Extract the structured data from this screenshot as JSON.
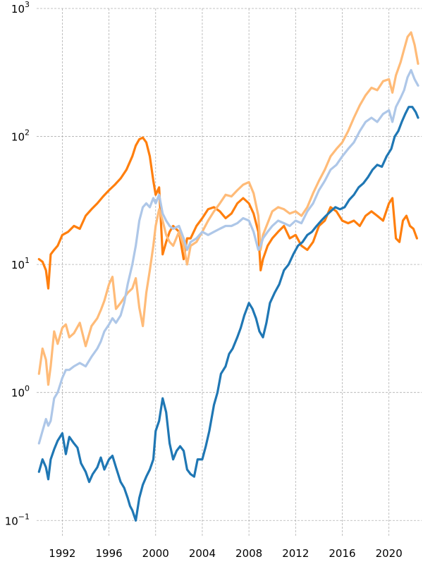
{
  "chart_data": {
    "type": "line",
    "title": "",
    "xlabel": "",
    "ylabel": "",
    "y_scale": "log",
    "grid": true,
    "legend": "none",
    "xlim": [
      1989.8,
      2022.8
    ],
    "ylim": [
      0.074,
      1000
    ],
    "x_ticks": [
      1992,
      1996,
      2000,
      2004,
      2008,
      2012,
      2016,
      2020
    ],
    "x_tick_labels": [
      "1992",
      "1996",
      "2000",
      "2004",
      "2008",
      "2012",
      "2016",
      "2020"
    ],
    "y_ticks": [
      {
        "value": 1000,
        "base": "10",
        "exp": "3"
      },
      {
        "value": 100,
        "base": "10",
        "exp": "2"
      },
      {
        "value": 10,
        "base": "10",
        "exp": "1"
      },
      {
        "value": 1,
        "base": "10",
        "exp": "0"
      },
      {
        "value": 0.1,
        "base": "10",
        "exp": "−1"
      }
    ],
    "series": [
      {
        "color": "#ff7f0e",
        "x": [
          1990.0,
          1990.3,
          1990.6,
          1990.8,
          1991.0,
          1991.3,
          1991.6,
          1992.0,
          1992.5,
          1993.0,
          1993.5,
          1994.0,
          1994.5,
          1995.0,
          1995.5,
          1996.0,
          1996.5,
          1997.0,
          1997.5,
          1998.0,
          1998.3,
          1998.6,
          1998.9,
          1999.2,
          1999.5,
          1999.8,
          2000.0,
          2000.3,
          2000.6,
          2000.9,
          2001.2,
          2001.5,
          2002.0,
          2002.4,
          2002.7,
          2003.0,
          2003.5,
          2004.0,
          2004.5,
          2005.0,
          2005.5,
          2006.0,
          2006.5,
          2007.0,
          2007.5,
          2008.0,
          2008.4,
          2008.8,
          2009.0,
          2009.2,
          2009.6,
          2010.0,
          2010.5,
          2011.0,
          2011.5,
          2012.0,
          2012.5,
          2013.0,
          2013.5,
          2014.0,
          2014.5,
          2015.0,
          2015.5,
          2016.0,
          2016.5,
          2017.0,
          2017.5,
          2018.0,
          2018.5,
          2019.0,
          2019.5,
          2020.0,
          2020.3,
          2020.6,
          2020.9,
          2021.2,
          2021.5,
          2021.8,
          2022.1,
          2022.4
        ],
        "y": [
          11,
          10.5,
          9,
          6.5,
          12,
          13,
          14,
          17,
          18,
          20,
          19,
          24,
          27,
          30,
          34,
          38,
          42,
          47,
          55,
          70,
          85,
          95,
          98,
          90,
          70,
          45,
          35,
          40,
          12,
          15,
          18,
          20,
          18,
          11,
          16,
          16,
          20,
          23,
          27,
          28,
          26,
          23,
          25,
          30,
          33,
          30,
          25,
          18,
          9,
          11,
          14,
          16,
          18,
          20,
          16,
          17,
          14,
          13,
          15,
          20,
          22,
          28,
          26,
          22,
          21,
          22,
          20,
          24,
          26,
          24,
          22,
          30,
          33,
          16,
          15,
          22,
          24,
          20,
          19,
          16
        ]
      },
      {
        "color": "#ffbb78",
        "x": [
          1990.0,
          1990.3,
          1990.6,
          1990.8,
          1991.0,
          1991.3,
          1991.6,
          1992.0,
          1992.3,
          1992.6,
          1993.0,
          1993.5,
          1994.0,
          1994.5,
          1995.0,
          1995.3,
          1995.6,
          1996.0,
          1996.3,
          1996.6,
          1997.0,
          1997.3,
          1997.6,
          1998.0,
          1998.3,
          1998.6,
          1998.9,
          1999.2,
          1999.5,
          1999.8,
          2000.0,
          2000.3,
          2000.6,
          2000.9,
          2001.2,
          2001.5,
          2002.0,
          2002.4,
          2002.7,
          2003.0,
          2003.5,
          2004.0,
          2004.5,
          2005.0,
          2005.5,
          2006.0,
          2006.5,
          2007.0,
          2007.5,
          2008.0,
          2008.4,
          2008.8,
          2009.0,
          2009.2,
          2009.6,
          2010.0,
          2010.5,
          2011.0,
          2011.5,
          2012.0,
          2012.5,
          2013.0,
          2013.5,
          2014.0,
          2014.5,
          2015.0,
          2015.5,
          2016.0,
          2016.5,
          2017.0,
          2017.5,
          2018.0,
          2018.5,
          2019.0,
          2019.5,
          2020.0,
          2020.3,
          2020.6,
          2021.0,
          2021.3,
          2021.6,
          2021.9,
          2022.2,
          2022.5
        ],
        "y": [
          1.4,
          2.2,
          1.8,
          1.15,
          1.6,
          3.0,
          2.4,
          3.2,
          3.4,
          2.7,
          2.9,
          3.5,
          2.3,
          3.3,
          3.8,
          4.4,
          5.2,
          7.0,
          8.0,
          4.5,
          5.0,
          5.5,
          6.0,
          6.5,
          7.8,
          4.6,
          3.3,
          6.0,
          9.0,
          14.0,
          20.0,
          27.0,
          22.0,
          17.0,
          15.0,
          14.0,
          18.0,
          14.0,
          10.0,
          14.0,
          15.0,
          18.0,
          22.0,
          26.0,
          30.0,
          35.0,
          34.0,
          38.0,
          42.0,
          44.0,
          36.0,
          24.0,
          13.0,
          17.0,
          21.0,
          26.0,
          28.0,
          27.0,
          25.0,
          26.0,
          24.0,
          28.0,
          36.0,
          45.0,
          55.0,
          70.0,
          80.0,
          90.0,
          110.0,
          140.0,
          175.0,
          210.0,
          240.0,
          230.0,
          270.0,
          280.0,
          220.0,
          300.0,
          380.0,
          480.0,
          600.0,
          650.0,
          520.0,
          370.0
        ]
      },
      {
        "color": "#aec7e8",
        "x": [
          1990.0,
          1990.3,
          1990.6,
          1990.8,
          1991.0,
          1991.3,
          1991.6,
          1992.0,
          1992.3,
          1992.6,
          1993.0,
          1993.5,
          1994.0,
          1994.5,
          1995.0,
          1995.3,
          1995.6,
          1996.0,
          1996.3,
          1996.6,
          1997.0,
          1997.3,
          1997.6,
          1998.0,
          1998.3,
          1998.6,
          1998.9,
          1999.2,
          1999.5,
          1999.8,
          2000.0,
          2000.3,
          2000.6,
          2000.9,
          2001.2,
          2001.5,
          2002.0,
          2002.4,
          2002.7,
          2003.0,
          2003.5,
          2004.0,
          2004.5,
          2005.0,
          2005.5,
          2006.0,
          2006.5,
          2007.0,
          2007.5,
          2008.0,
          2008.4,
          2008.8,
          2009.0,
          2009.2,
          2009.6,
          2010.0,
          2010.5,
          2011.0,
          2011.5,
          2012.0,
          2012.5,
          2013.0,
          2013.5,
          2014.0,
          2014.5,
          2015.0,
          2015.5,
          2016.0,
          2016.5,
          2017.0,
          2017.5,
          2018.0,
          2018.5,
          2019.0,
          2019.5,
          2020.0,
          2020.3,
          2020.6,
          2021.0,
          2021.3,
          2021.6,
          2021.9,
          2022.2,
          2022.5
        ],
        "y": [
          0.4,
          0.5,
          0.62,
          0.55,
          0.6,
          0.9,
          1.0,
          1.3,
          1.5,
          1.5,
          1.6,
          1.7,
          1.6,
          1.9,
          2.2,
          2.5,
          3.0,
          3.4,
          3.8,
          3.5,
          4.0,
          5.0,
          7.0,
          10.0,
          14.0,
          22.0,
          28.0,
          30.0,
          28.0,
          33.0,
          30.0,
          35.0,
          25.0,
          22.0,
          20.0,
          19.0,
          20.0,
          16.0,
          13.0,
          15.0,
          16.0,
          18.0,
          17.0,
          18.0,
          19.0,
          20.0,
          20.0,
          21.0,
          23.0,
          22.0,
          18.0,
          13.0,
          14.0,
          16.0,
          18.0,
          20.0,
          22.0,
          21.0,
          20.0,
          22.0,
          21.0,
          26.0,
          30.0,
          38.0,
          45.0,
          55.0,
          60.0,
          70.0,
          80.0,
          90.0,
          110.0,
          130.0,
          140.0,
          130.0,
          150.0,
          160.0,
          130.0,
          170.0,
          200.0,
          230.0,
          290.0,
          330.0,
          280.0,
          250.0
        ]
      },
      {
        "color": "#1f77b4",
        "x": [
          1990.0,
          1990.3,
          1990.6,
          1990.8,
          1991.0,
          1991.3,
          1991.6,
          1992.0,
          1992.3,
          1992.6,
          1993.0,
          1993.3,
          1993.6,
          1994.0,
          1994.3,
          1994.6,
          1995.0,
          1995.3,
          1995.6,
          1996.0,
          1996.3,
          1996.6,
          1997.0,
          1997.3,
          1997.6,
          1997.8,
          1998.0,
          1998.3,
          1998.6,
          1998.9,
          1999.2,
          1999.5,
          1999.8,
          2000.0,
          2000.3,
          2000.6,
          2000.9,
          2001.2,
          2001.5,
          2001.8,
          2002.1,
          2002.4,
          2002.7,
          2003.0,
          2003.3,
          2003.6,
          2004.0,
          2004.3,
          2004.6,
          2005.0,
          2005.3,
          2005.6,
          2006.0,
          2006.3,
          2006.6,
          2007.0,
          2007.3,
          2007.6,
          2008.0,
          2008.3,
          2008.6,
          2008.9,
          2009.2,
          2009.5,
          2009.8,
          2010.2,
          2010.6,
          2011.0,
          2011.4,
          2011.8,
          2012.2,
          2012.6,
          2013.0,
          2013.4,
          2013.8,
          2014.2,
          2014.6,
          2015.0,
          2015.4,
          2015.8,
          2016.2,
          2016.6,
          2017.0,
          2017.4,
          2017.8,
          2018.2,
          2018.6,
          2019.0,
          2019.4,
          2019.8,
          2020.2,
          2020.5,
          2020.8,
          2021.1,
          2021.4,
          2021.7,
          2022.0,
          2022.3,
          2022.5
        ],
        "y": [
          0.24,
          0.3,
          0.26,
          0.21,
          0.3,
          0.36,
          0.42,
          0.48,
          0.33,
          0.45,
          0.4,
          0.37,
          0.28,
          0.24,
          0.2,
          0.23,
          0.26,
          0.31,
          0.25,
          0.3,
          0.32,
          0.26,
          0.2,
          0.18,
          0.15,
          0.13,
          0.12,
          0.1,
          0.15,
          0.19,
          0.22,
          0.25,
          0.3,
          0.5,
          0.6,
          0.9,
          0.7,
          0.4,
          0.3,
          0.35,
          0.38,
          0.35,
          0.25,
          0.23,
          0.22,
          0.3,
          0.3,
          0.38,
          0.5,
          0.8,
          1.0,
          1.4,
          1.6,
          2.0,
          2.2,
          2.7,
          3.2,
          4.0,
          5.0,
          4.5,
          3.8,
          3.0,
          2.7,
          3.5,
          5.0,
          6.0,
          7.0,
          9.0,
          10.0,
          12.0,
          14.0,
          15.0,
          17.0,
          18.0,
          20.0,
          22.0,
          24.0,
          26.0,
          28.0,
          27.0,
          28.0,
          32.0,
          35.0,
          40.0,
          43.0,
          48.0,
          55.0,
          60.0,
          58.0,
          70.0,
          80.0,
          100.0,
          110.0,
          130.0,
          150.0,
          170.0,
          170.0,
          155.0,
          140.0
        ]
      }
    ]
  }
}
